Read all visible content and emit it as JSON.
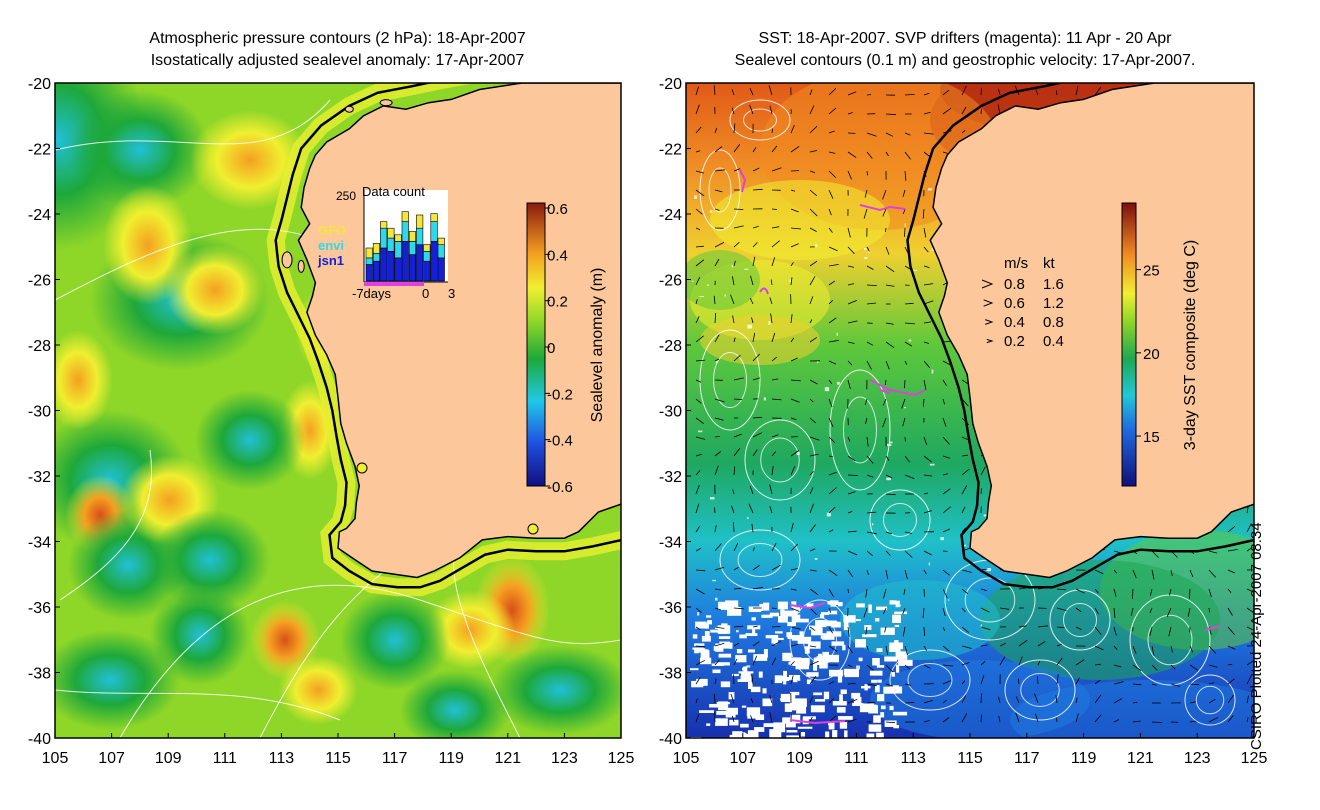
{
  "left_panel": {
    "title_line1": "Atmospheric pressure contours (2 hPa): 18-Apr-2007",
    "title_line2": "Isostatically adjusted sealevel anomaly: 17-Apr-2007",
    "colorbar": {
      "label": "Sealevel anomaly (m)",
      "ticks": [
        "0.6",
        "0.4",
        "0.2",
        "0",
        "-0.2",
        "-0.4",
        "-0.6"
      ],
      "min": -0.6,
      "max": 0.6
    },
    "inset": {
      "title": "Data count",
      "ymax_label": "250",
      "x_labels": [
        "-7days",
        "0",
        "3"
      ],
      "legend": [
        {
          "name": "GFO",
          "color": "#f5e63a"
        },
        {
          "name": "envi",
          "color": "#2fd8e8"
        },
        {
          "name": "jsn1",
          "color": "#1420d8"
        }
      ]
    }
  },
  "right_panel": {
    "title_line1": "SST: 18-Apr-2007. SVP drifters (magenta): 11 Apr - 20 Apr",
    "title_line2": "Sealevel contours (0.1 m) and geostrophic velocity: 17-Apr-2007.",
    "colorbar": {
      "label": "3-day SST composite (deg C)",
      "ticks": [
        "25",
        "20",
        "15"
      ],
      "min": 12,
      "max": 29
    },
    "velocity_legend": {
      "header_ms": "m/s",
      "header_kt": "kt",
      "rows": [
        {
          "ms": "0.8",
          "kt": "1.6"
        },
        {
          "ms": "0.6",
          "kt": "1.2"
        },
        {
          "ms": "0.4",
          "kt": "0.8"
        },
        {
          "ms": "0.2",
          "kt": "0.4"
        }
      ]
    }
  },
  "axes": {
    "lat_labels": [
      "-20",
      "-22",
      "-24",
      "-26",
      "-28",
      "-30",
      "-32",
      "-34",
      "-36",
      "-38",
      "-40"
    ],
    "lon_labels": [
      "105",
      "107",
      "109",
      "111",
      "113",
      "115",
      "117",
      "119",
      "121",
      "123",
      "125"
    ]
  },
  "credit": "CSIRO Plotted 24-Apr-2007 08:34",
  "colors": {
    "land": "#fcc89b",
    "coast": "#000000",
    "drifter": "#e040e0",
    "contour": "#ffffff"
  }
}
